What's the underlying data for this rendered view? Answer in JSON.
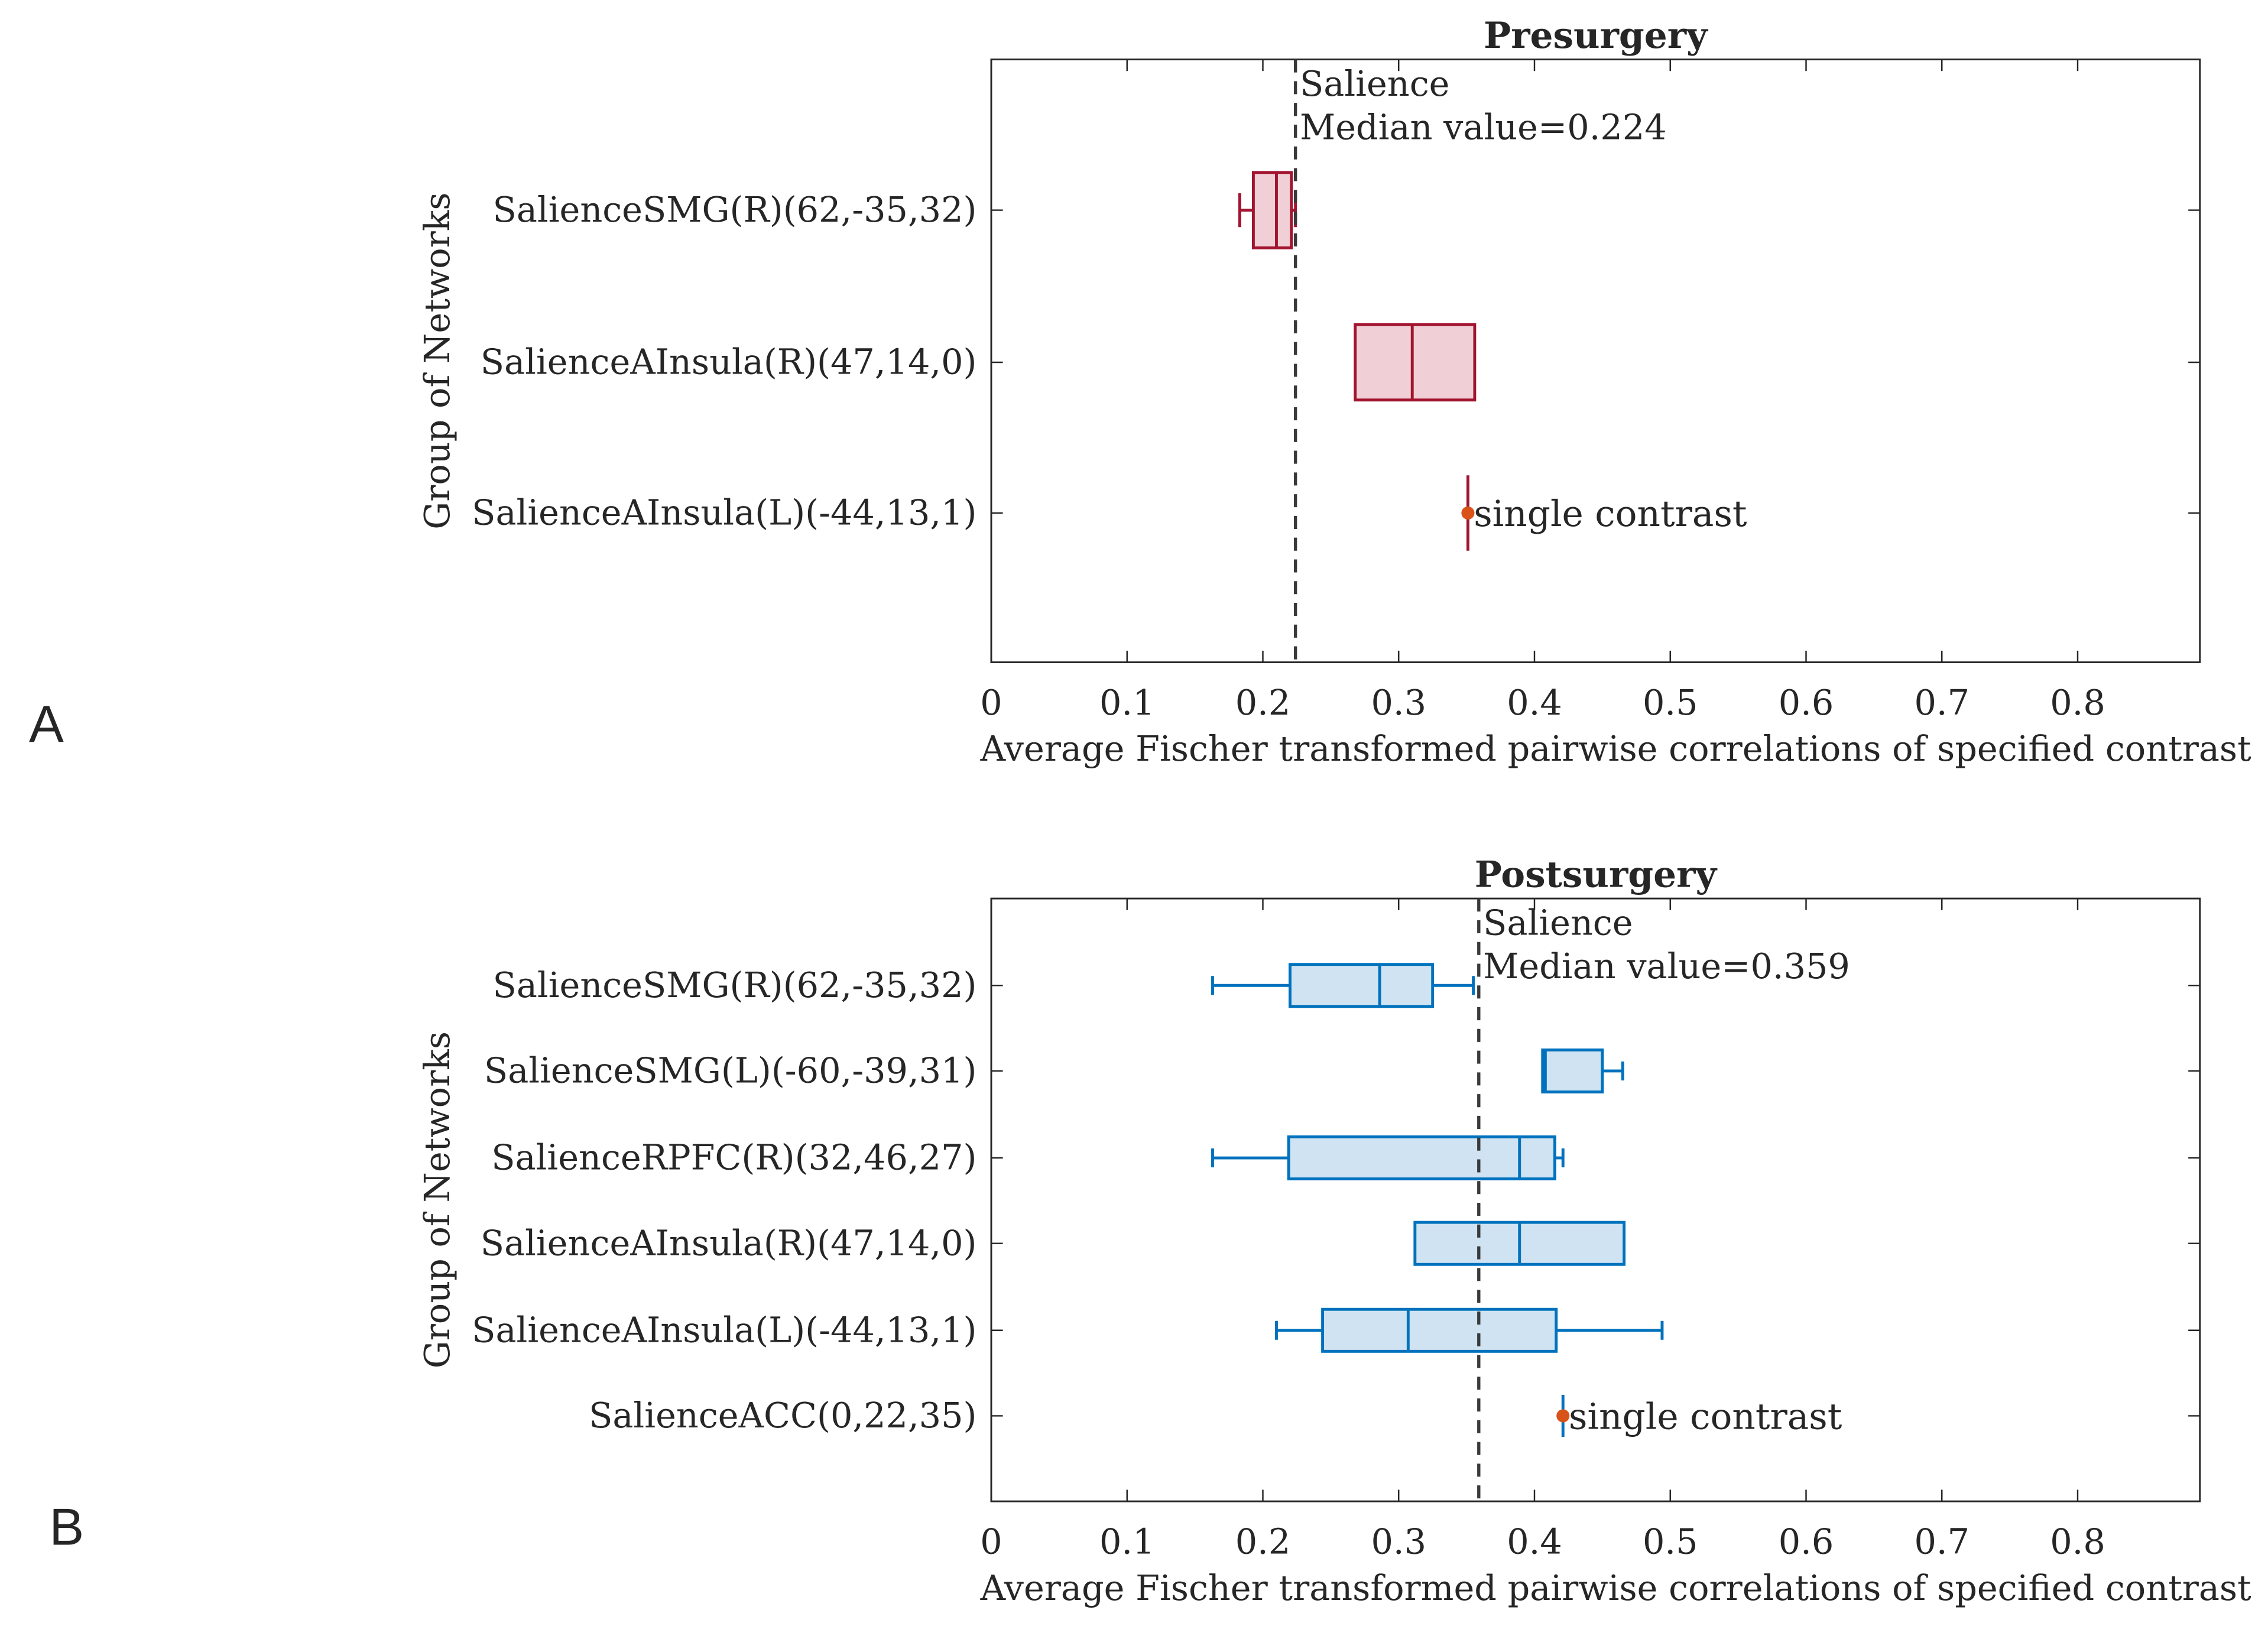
{
  "panels": [
    {
      "label": "A",
      "chart_data": {
        "type": "box",
        "orientation": "horizontal",
        "title": "Presurgery",
        "xlabel": "Average Fischer transformed pairwise correlations of specified contrast",
        "ylabel": "Group of Networks",
        "xlim": [
          0,
          0.89
        ],
        "xticks": [
          "0",
          "0.1",
          "0.2",
          "0.3",
          "0.4",
          "0.5",
          "0.6",
          "0.7",
          "0.8"
        ],
        "color": "#a2142f",
        "fill": "#f0d0d6",
        "median_line": {
          "value": 0.224,
          "label_line1": "Salience",
          "label_line2": "Median value=0.224"
        },
        "categories": [
          "SalienceSMG(R)(62,-35,32)",
          "SalienceAInsula(R)(47,14,0)",
          "SalienceAInsula(L)(-44,13,1)"
        ],
        "boxes": [
          {
            "min": 0.183,
            "q1": 0.193,
            "median": 0.21,
            "q3": 0.221,
            "max": 0.224
          },
          {
            "min": 0.268,
            "q1": 0.268,
            "median": 0.31,
            "q3": 0.356,
            "max": 0.356
          },
          {
            "single": 0.351,
            "label": "single contrast"
          }
        ]
      }
    },
    {
      "label": "B",
      "chart_data": {
        "type": "box",
        "orientation": "horizontal",
        "title": "Postsurgery",
        "xlabel": "Average Fischer transformed pairwise correlations of specified contrast",
        "ylabel": "Group of Networks",
        "xlim": [
          0,
          0.89
        ],
        "xticks": [
          "0",
          "0.1",
          "0.2",
          "0.3",
          "0.4",
          "0.5",
          "0.6",
          "0.7",
          "0.8"
        ],
        "color": "#0072bd",
        "fill": "#cfe3f2",
        "median_line": {
          "value": 0.359,
          "label_line1": "Salience",
          "label_line2": "Median value=0.359"
        },
        "categories": [
          "SalienceSMG(R)(62,-35,32)",
          "SalienceSMG(L)(-60,-39,31)",
          "SalienceRPFC(R)(32,46,27)",
          "SalienceAInsula(R)(47,14,0)",
          "SalienceAInsula(L)(-44,13,1)",
          "SalienceACC(0,22,35)"
        ],
        "boxes": [
          {
            "min": 0.163,
            "q1": 0.22,
            "median": 0.286,
            "q3": 0.325,
            "max": 0.355
          },
          {
            "min": 0.406,
            "q1": 0.406,
            "median": 0.408,
            "q3": 0.45,
            "max": 0.465
          },
          {
            "min": 0.163,
            "q1": 0.219,
            "median": 0.389,
            "q3": 0.415,
            "max": 0.421
          },
          {
            "min": 0.312,
            "q1": 0.312,
            "median": 0.389,
            "q3": 0.466,
            "max": 0.466
          },
          {
            "min": 0.21,
            "q1": 0.244,
            "median": 0.307,
            "q3": 0.416,
            "max": 0.494
          },
          {
            "single": 0.421,
            "label": "single contrast"
          }
        ]
      }
    }
  ]
}
